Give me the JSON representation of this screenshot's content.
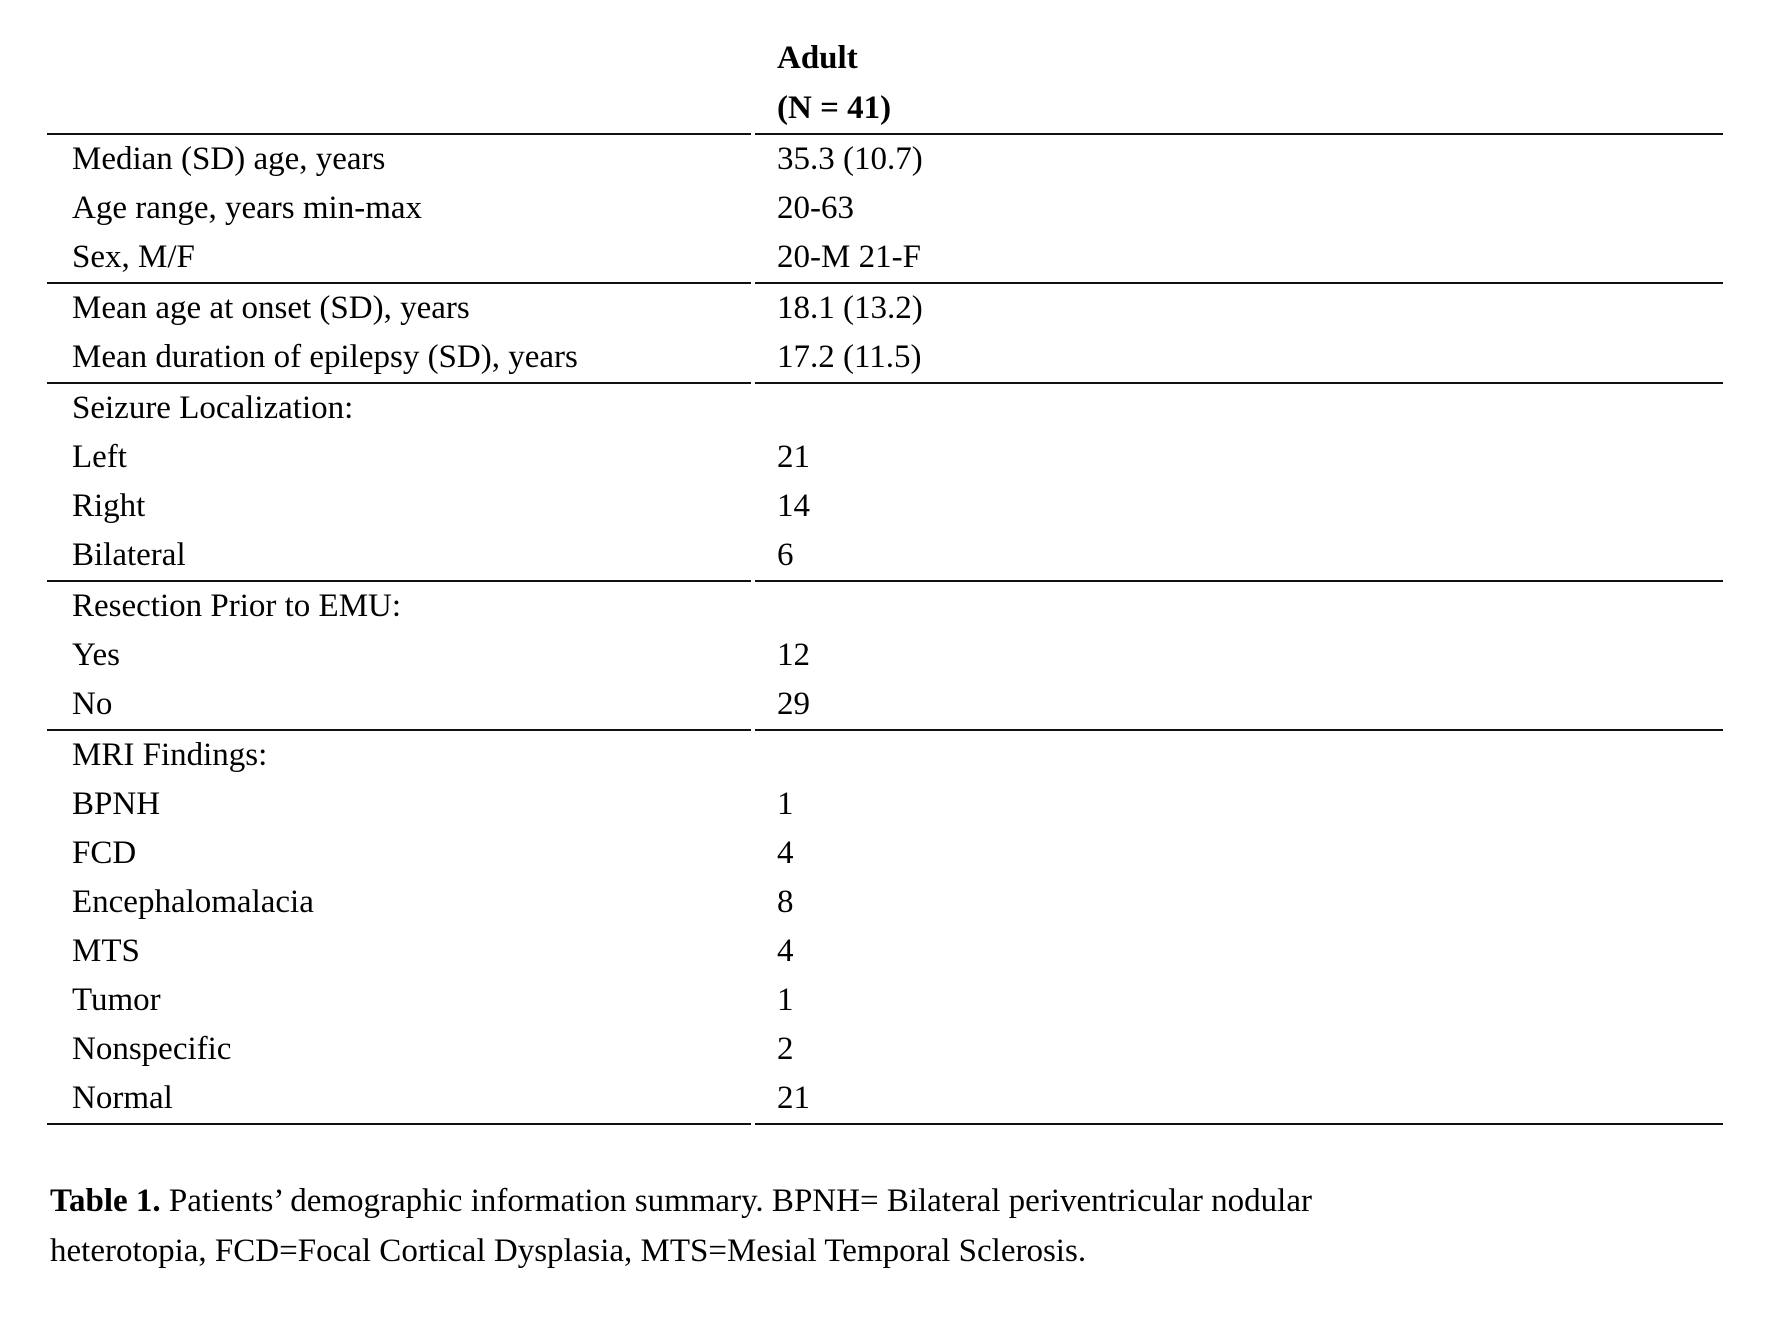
{
  "table": {
    "header": {
      "line1": "Adult",
      "line2": "(N = 41)"
    },
    "rows": [
      {
        "label": "Median (SD) age, years",
        "value": "35.3 (10.7)"
      },
      {
        "label": "Age range, years min-max",
        "value": "20-63"
      },
      {
        "label": "Sex, M/F",
        "value": "20-M 21-F"
      },
      {
        "label": "Mean age at onset (SD), years",
        "value": "18.1 (13.2)"
      },
      {
        "label": "Mean duration of epilepsy (SD), years",
        "value": "17.2 (11.5)"
      },
      {
        "label": "Seizure Localization:",
        "value": ""
      },
      {
        "label": "Left",
        "value": "21"
      },
      {
        "label": "Right",
        "value": "14"
      },
      {
        "label": "Bilateral",
        "value": "6"
      },
      {
        "label": "Resection Prior to EMU:",
        "value": ""
      },
      {
        "label": "Yes",
        "value": "12"
      },
      {
        "label": "No",
        "value": "29"
      },
      {
        "label": "MRI Findings:",
        "value": ""
      },
      {
        "label": "BPNH",
        "value": "1"
      },
      {
        "label": "FCD",
        "value": "4"
      },
      {
        "label": "Encephalomalacia",
        "value": "8"
      },
      {
        "label": "MTS",
        "value": "4"
      },
      {
        "label": "Tumor",
        "value": "1"
      },
      {
        "label": "Nonspecific",
        "value": "2"
      },
      {
        "label": "Normal",
        "value": "21"
      }
    ]
  },
  "caption": {
    "label": "Table 1.",
    "line1": "Patients’ demographic information summary. BPNH= Bilateral periventricular nodular",
    "line2": "heterotopia, FCD=Focal Cortical Dysplasia, MTS=Mesial Temporal Sclerosis."
  },
  "colors": {
    "text": "#000000",
    "rule": "#111111",
    "background": "#ffffff"
  }
}
